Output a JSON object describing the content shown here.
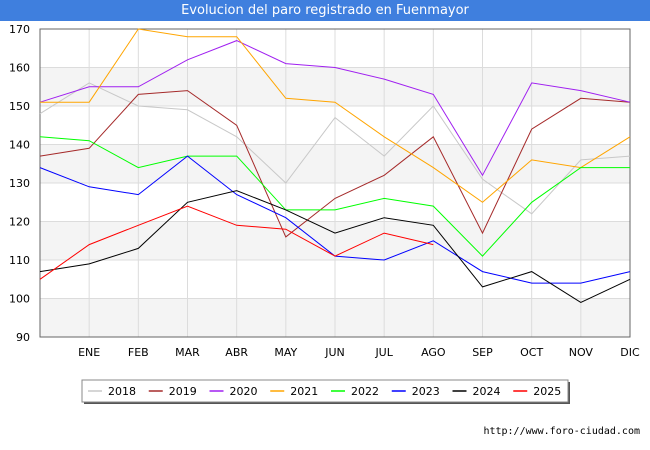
{
  "chart_data": {
    "type": "line",
    "title": "Evolucion del paro registrado en Fuenmayor",
    "categories": [
      "",
      "ENE",
      "FEB",
      "MAR",
      "ABR",
      "MAY",
      "JUN",
      "JUL",
      "AGO",
      "SEP",
      "OCT",
      "NOV",
      "DIC"
    ],
    "ylim": [
      90,
      170
    ],
    "yticks": [
      90,
      100,
      110,
      120,
      130,
      140,
      150,
      160,
      170
    ],
    "xlabel": "",
    "ylabel": "",
    "grid": true,
    "legend_position": "bottom",
    "series": [
      {
        "name": "2018",
        "color": "#c8c8c8",
        "values": [
          148,
          156,
          150,
          149,
          142,
          130,
          147,
          137,
          150,
          131,
          122,
          136,
          137
        ]
      },
      {
        "name": "2019",
        "color": "#a52a2a",
        "values": [
          137,
          139,
          153,
          154,
          145,
          116,
          126,
          132,
          142,
          117,
          144,
          152,
          151
        ]
      },
      {
        "name": "2020",
        "color": "#a020f0",
        "values": [
          151,
          155,
          155,
          162,
          167,
          161,
          160,
          157,
          153,
          132,
          156,
          154,
          151
        ]
      },
      {
        "name": "2021",
        "color": "#ffa500",
        "values": [
          151,
          151,
          170,
          168,
          168,
          152,
          151,
          142,
          134,
          125,
          136,
          134,
          142
        ]
      },
      {
        "name": "2022",
        "color": "#00ff00",
        "values": [
          142,
          141,
          134,
          137,
          137,
          123,
          123,
          126,
          124,
          111,
          125,
          134,
          134
        ]
      },
      {
        "name": "2023",
        "color": "#0000ff",
        "values": [
          134,
          129,
          127,
          137,
          127,
          121,
          111,
          110,
          115,
          107,
          104,
          104,
          107
        ]
      },
      {
        "name": "2024",
        "color": "#000000",
        "values": [
          107,
          109,
          113,
          125,
          128,
          123,
          117,
          121,
          119,
          103,
          107,
          99,
          105
        ]
      },
      {
        "name": "2025",
        "color": "#ff0000",
        "values": [
          105,
          114,
          119,
          124,
          119,
          118,
          111,
          117,
          114,
          null,
          null,
          null,
          null
        ]
      }
    ]
  },
  "source_text": "http://www.foro-ciudad.com"
}
